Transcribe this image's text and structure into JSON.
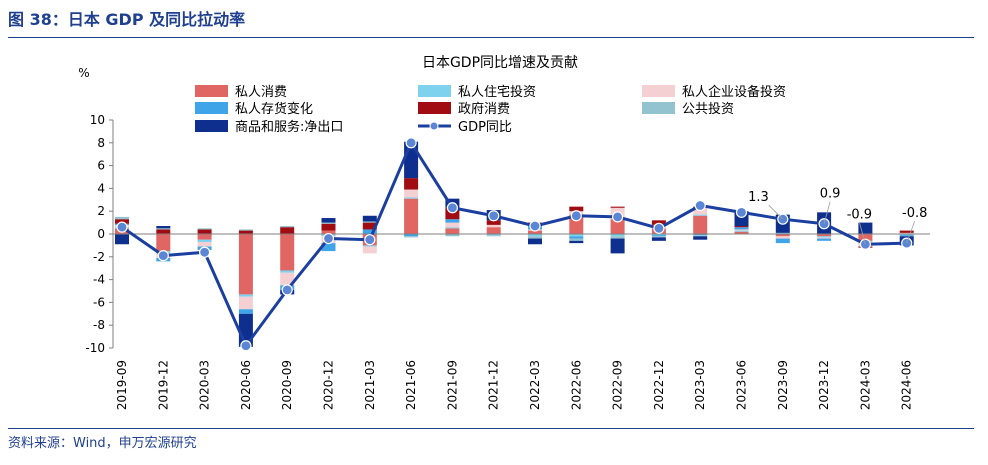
{
  "figure": {
    "title": "图 38：日本 GDP 及同比拉动率",
    "source": "资料来源：Wind，申万宏源研究"
  },
  "chart_data": {
    "type": "bar",
    "stacked": true,
    "title": "日本GDP同比增速及贡献",
    "ylabel": "%",
    "xlabel": "",
    "ylim": [
      -10,
      10
    ],
    "yticks": [
      -10,
      -8,
      -6,
      -4,
      -2,
      0,
      2,
      4,
      6,
      8,
      10
    ],
    "grid": false,
    "legend_position": "top",
    "categories": [
      "2019-09",
      "2019-12",
      "2020-03",
      "2020-06",
      "2020-09",
      "2020-12",
      "2021-03",
      "2021-06",
      "2021-09",
      "2021-12",
      "2022-03",
      "2022-06",
      "2022-09",
      "2022-12",
      "2023-03",
      "2023-06",
      "2023-09",
      "2023-12",
      "2024-03",
      "2024-06"
    ],
    "series": [
      {
        "name": "私人消费",
        "color": "#e06663",
        "values": [
          0.5,
          -1.5,
          -0.5,
          -5.3,
          -3.2,
          0.3,
          -1.0,
          3.1,
          0.5,
          0.6,
          0.3,
          1.7,
          1.3,
          0.5,
          1.6,
          0.2,
          -0.2,
          -0.2,
          -0.6,
          0.0
        ]
      },
      {
        "name": "私人住宅投资",
        "color": "#7fd2ee",
        "values": [
          0.1,
          -0.2,
          -0.2,
          -0.2,
          -0.2,
          -0.2,
          -0.1,
          0.1,
          0.1,
          -0.1,
          -0.2,
          -0.2,
          -0.2,
          -0.1,
          0.1,
          0.1,
          0.1,
          -0.1,
          -0.1,
          -0.1
        ]
      },
      {
        "name": "私人企业设备投资",
        "color": "#f4d0d2",
        "values": [
          0.2,
          -0.4,
          -0.4,
          -1.1,
          -1.1,
          -0.6,
          -0.6,
          0.7,
          0.4,
          0.2,
          0.1,
          0.3,
          1.0,
          0.3,
          0.6,
          0.1,
          -0.2,
          -0.1,
          -0.4,
          0.1
        ]
      },
      {
        "name": "私人存货变化",
        "color": "#3fa5e8",
        "values": [
          0.1,
          -0.3,
          -0.3,
          -0.4,
          -0.4,
          -0.7,
          0.4,
          -0.2,
          0.3,
          0.0,
          0.3,
          -0.2,
          0.0,
          -0.1,
          -0.1,
          0.2,
          -0.4,
          -0.2,
          0.0,
          -0.1
        ]
      },
      {
        "name": "政府消费",
        "color": "#a00c12",
        "values": [
          0.4,
          0.4,
          0.4,
          0.3,
          0.6,
          0.6,
          0.6,
          1.0,
          1.0,
          0.4,
          0.3,
          0.4,
          0.1,
          0.4,
          0.1,
          0.1,
          0.0,
          0.0,
          -0.1,
          0.2
        ]
      },
      {
        "name": "公共投资",
        "color": "#93c3ce",
        "values": [
          0.2,
          0.1,
          0.1,
          0.1,
          0.1,
          0.1,
          0.1,
          -0.1,
          -0.2,
          -0.1,
          -0.2,
          -0.2,
          -0.2,
          -0.1,
          -0.1,
          0.0,
          0.0,
          0.0,
          0.0,
          0.0
        ]
      },
      {
        "name": "商品和服务:净出口",
        "color": "#0f2f8e",
        "values": [
          -0.9,
          0.2,
          0.0,
          -2.9,
          -0.4,
          0.4,
          0.5,
          3.2,
          0.8,
          0.9,
          -0.5,
          -0.2,
          -1.3,
          -0.3,
          -0.3,
          1.3,
          1.6,
          1.9,
          1.0,
          -0.8
        ]
      },
      {
        "name": "GDP同比",
        "color": "#1b3fa0",
        "type": "line",
        "values": [
          0.6,
          -1.9,
          -1.6,
          -9.8,
          -4.9,
          -0.4,
          -0.5,
          8.0,
          2.3,
          1.6,
          0.7,
          1.6,
          1.5,
          0.5,
          2.5,
          1.9,
          1.3,
          0.9,
          -0.9,
          -0.8
        ]
      }
    ],
    "annotations": [
      {
        "category": "2023-09",
        "text": "1.3"
      },
      {
        "category": "2023-12",
        "text": "0.9"
      },
      {
        "category": "2024-03",
        "text": "-0.9"
      },
      {
        "category": "2024-06",
        "text": "-0.8"
      }
    ]
  }
}
